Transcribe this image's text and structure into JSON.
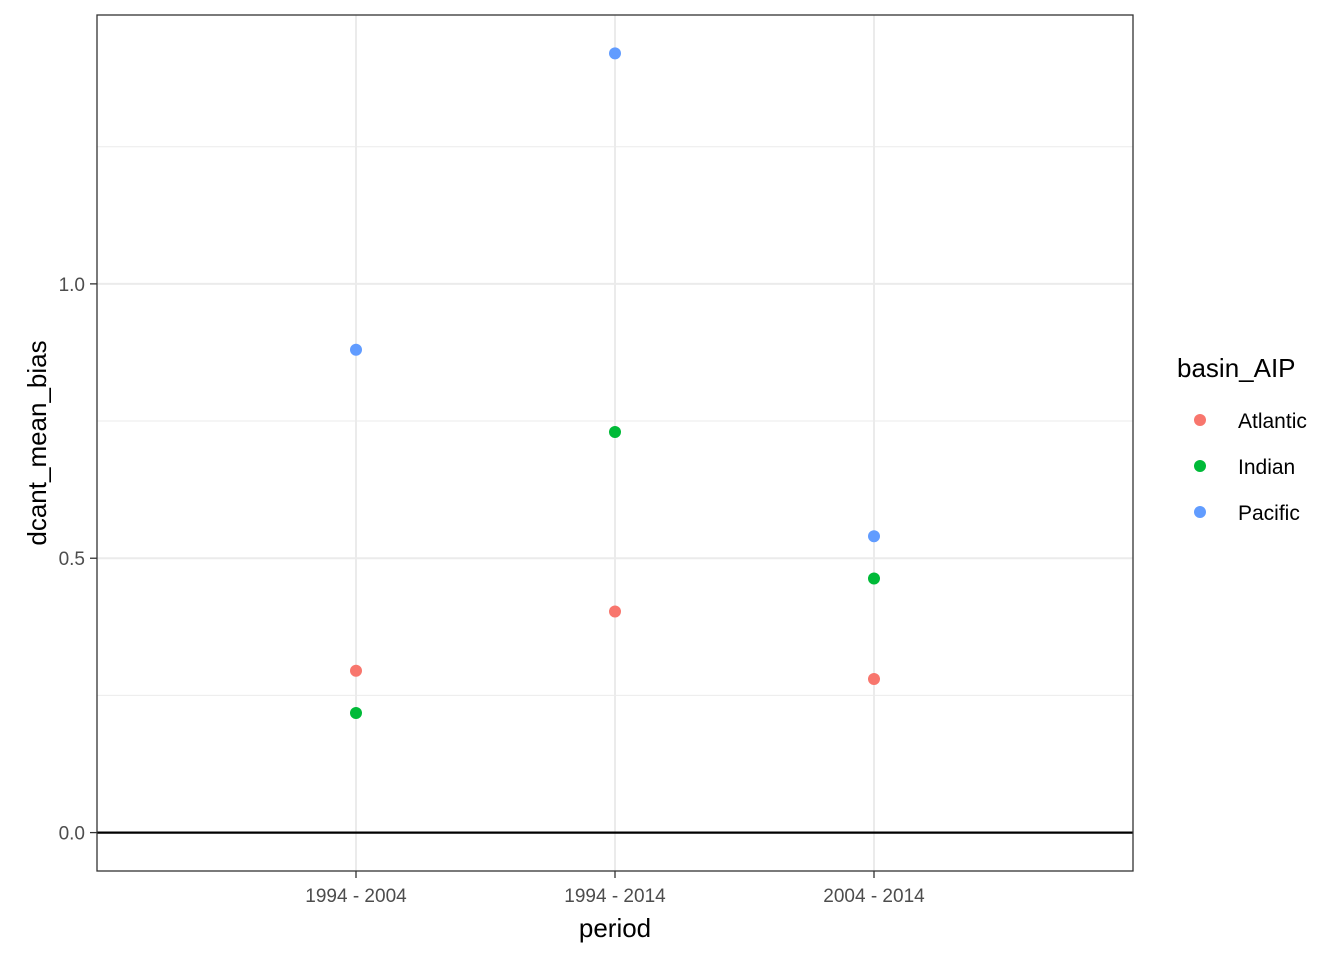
{
  "chart_data": {
    "type": "scatter",
    "title": "",
    "xlabel": "period",
    "ylabel": "dcant_mean_bias",
    "categories": [
      "1994 - 2004",
      "1994 - 2014",
      "2004 - 2014"
    ],
    "ylim": [
      -0.07,
      1.49
    ],
    "y_ticks": [
      {
        "value": 0.0,
        "label": "0.0"
      },
      {
        "value": 0.5,
        "label": "0.5"
      },
      {
        "value": 1.0,
        "label": "1.0"
      }
    ],
    "y_minor_gridlines": [
      0.25,
      0.75,
      1.25
    ],
    "reference_line_y": 0,
    "grid": true,
    "legend": {
      "title": "basin_AIP",
      "placement": "right"
    },
    "series": [
      {
        "name": "Atlantic",
        "color": "#F8766D",
        "values": [
          0.295,
          0.403,
          0.28
        ]
      },
      {
        "name": "Indian",
        "color": "#00BA38",
        "values": [
          0.218,
          0.73,
          0.463
        ]
      },
      {
        "name": "Pacific",
        "color": "#619CFF",
        "values": [
          0.88,
          1.42,
          0.54
        ]
      }
    ]
  }
}
